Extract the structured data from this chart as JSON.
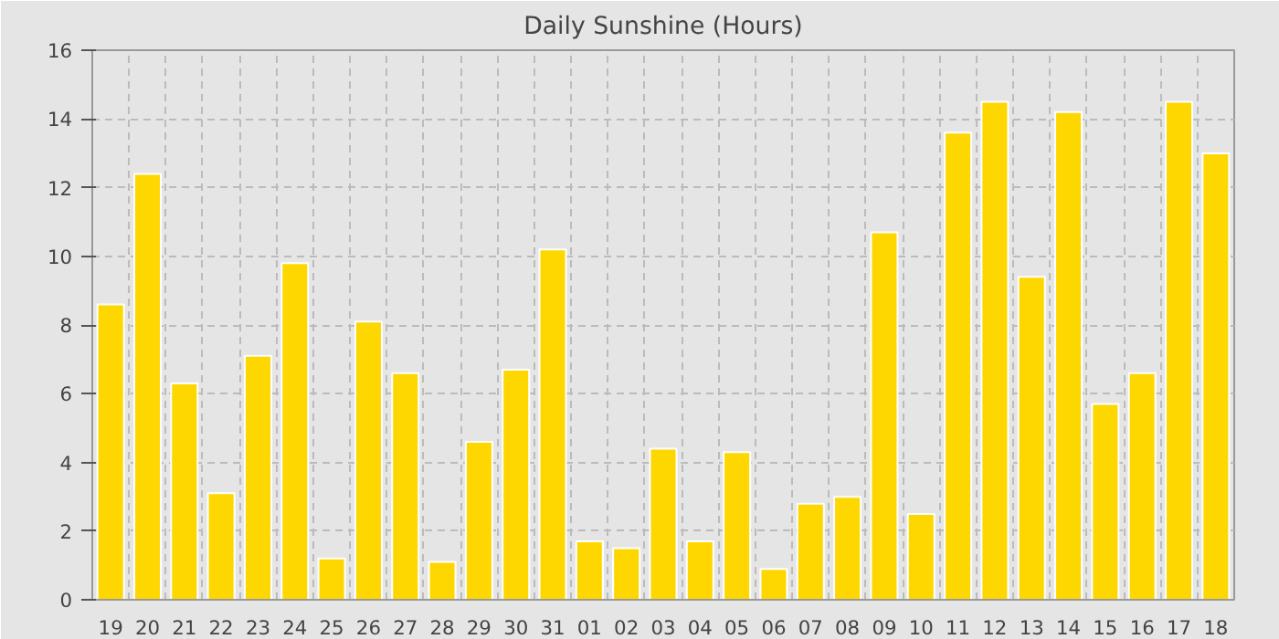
{
  "chart_data": {
    "type": "bar",
    "title": "Daily Sunshine (Hours)",
    "categories": [
      "19",
      "20",
      "21",
      "22",
      "23",
      "24",
      "25",
      "26",
      "27",
      "28",
      "29",
      "30",
      "31",
      "01",
      "02",
      "03",
      "04",
      "05",
      "06",
      "07",
      "08",
      "09",
      "10",
      "11",
      "12",
      "13",
      "14",
      "15",
      "16",
      "17",
      "18"
    ],
    "values": [
      8.6,
      12.4,
      6.3,
      3.1,
      7.1,
      9.8,
      1.2,
      8.1,
      6.6,
      1.1,
      4.6,
      6.7,
      10.2,
      1.7,
      1.5,
      4.4,
      1.7,
      4.3,
      0.9,
      2.8,
      3.0,
      10.7,
      2.5,
      13.6,
      14.5,
      9.4,
      14.2,
      5.7,
      6.6,
      14.5,
      13.0
    ],
    "color": "#ffd700",
    "ylim": [
      0,
      16
    ],
    "yticks": [
      0,
      2,
      4,
      6,
      8,
      10,
      12,
      14,
      16
    ],
    "grid": true
  }
}
